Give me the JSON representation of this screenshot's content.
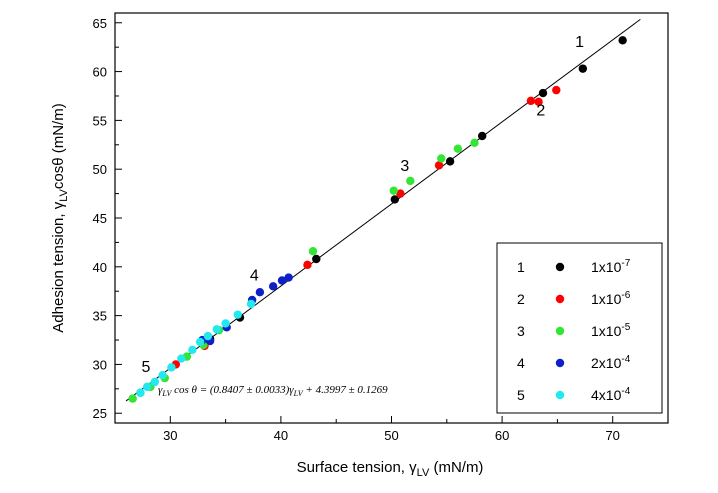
{
  "chart_data": {
    "type": "scatter",
    "title": "",
    "xlabel": {
      "main": "Surface tension, γ",
      "sub": "LV",
      "tail": " (mN/m)"
    },
    "ylabel": {
      "main": "Adhesion tension, γ",
      "sub": "LV",
      "tail": "cosθ (mN/m)"
    },
    "xlim": [
      25,
      75
    ],
    "ylim": [
      24,
      66
    ],
    "xticks": [
      30,
      40,
      50,
      60,
      70
    ],
    "yticks": [
      25,
      30,
      35,
      40,
      45,
      50,
      55,
      60,
      65
    ],
    "grid": false,
    "legend_position": "bottom-right",
    "fit_line": {
      "slope": 0.8407,
      "intercept": 4.3997,
      "x_range": [
        26,
        72.5
      ]
    },
    "equation": {
      "parts": [
        {
          "text": "γ",
          "style": "normal"
        },
        {
          "text": "LV",
          "style": "sub"
        },
        {
          "text": " cos θ = (0.8407 ± 0.0033)",
          "style": "normal"
        },
        {
          "text": "γ",
          "style": "normal"
        },
        {
          "text": "LV",
          "style": "sub"
        },
        {
          "text": " + 4.3997 ± 0.1269",
          "style": "normal"
        }
      ]
    },
    "annotations": [
      {
        "text": "1",
        "x": 67,
        "y": 62.5
      },
      {
        "text": "2",
        "x": 63.5,
        "y": 55.5
      },
      {
        "text": "3",
        "x": 51.2,
        "y": 49.8
      },
      {
        "text": "4",
        "x": 37.6,
        "y": 38.6
      },
      {
        "text": "5",
        "x": 27.8,
        "y": 29.2
      }
    ],
    "series": [
      {
        "name": "1",
        "label_base": "1x10",
        "label_exp": "-7",
        "color": "#000000",
        "points": [
          [
            33.6,
            32.6
          ],
          [
            36.3,
            34.8
          ],
          [
            43.2,
            40.8
          ],
          [
            50.3,
            46.9
          ],
          [
            55.3,
            50.8
          ],
          [
            58.2,
            53.4
          ],
          [
            63.7,
            57.8
          ],
          [
            67.3,
            60.3
          ],
          [
            70.9,
            63.2
          ]
        ]
      },
      {
        "name": "2",
        "label_base": "1x10",
        "label_exp": "-6",
        "color": "#ff0000",
        "points": [
          [
            30.5,
            30.0
          ],
          [
            33.1,
            31.9
          ],
          [
            42.4,
            40.2
          ],
          [
            50.8,
            47.5
          ],
          [
            54.3,
            50.4
          ],
          [
            62.6,
            57.0
          ],
          [
            63.3,
            56.9
          ],
          [
            64.9,
            58.1
          ]
        ]
      },
      {
        "name": "3",
        "label_base": "1x10",
        "label_exp": "-5",
        "color": "#33e633",
        "points": [
          [
            26.6,
            26.5
          ],
          [
            27.3,
            27.1
          ],
          [
            28.2,
            27.7
          ],
          [
            29.5,
            28.6
          ],
          [
            31.5,
            30.8
          ],
          [
            33.0,
            32.0
          ],
          [
            34.4,
            33.5
          ],
          [
            42.9,
            41.6
          ],
          [
            50.2,
            47.8
          ],
          [
            51.7,
            48.8
          ],
          [
            54.5,
            51.1
          ],
          [
            56.0,
            52.1
          ],
          [
            57.5,
            52.7
          ]
        ]
      },
      {
        "name": "4",
        "label_base": "2x10",
        "label_exp": "-4",
        "color": "#0f1fc8",
        "points": [
          [
            32.9,
            32.5
          ],
          [
            33.6,
            32.4
          ],
          [
            35.1,
            33.8
          ],
          [
            37.4,
            36.6
          ],
          [
            38.1,
            37.4
          ],
          [
            39.3,
            38.0
          ],
          [
            40.1,
            38.6
          ],
          [
            40.7,
            38.9
          ]
        ]
      },
      {
        "name": "5",
        "label_base": "4x10",
        "label_exp": "-4",
        "color": "#22e8f0",
        "points": [
          [
            27.3,
            27.1
          ],
          [
            27.9,
            27.7
          ],
          [
            28.6,
            28.2
          ],
          [
            29.3,
            28.9
          ],
          [
            30.1,
            29.7
          ],
          [
            31.0,
            30.6
          ],
          [
            32.0,
            31.5
          ],
          [
            32.7,
            32.3
          ],
          [
            33.4,
            32.9
          ],
          [
            34.2,
            33.6
          ],
          [
            35.0,
            34.2
          ],
          [
            36.1,
            35.1
          ],
          [
            37.3,
            36.2
          ]
        ]
      }
    ]
  }
}
